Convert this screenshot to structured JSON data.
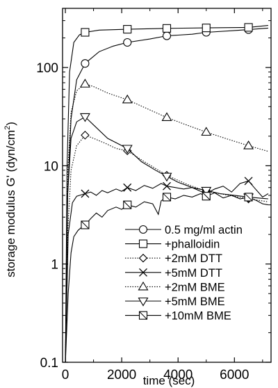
{
  "chart_data": {
    "type": "line",
    "xlabel": "time (sec)",
    "ylabel_main": "storage modulus G' (dyn/cm",
    "ylabel_sup": "2",
    "ylabel_end": ")",
    "x_range": [
      -100,
      7300
    ],
    "y_range": [
      0.1,
      400
    ],
    "y_scale": "log",
    "x_ticks": [
      0,
      2000,
      4000,
      6000
    ],
    "x_tick_labels": [
      "0",
      "2000",
      "4000",
      "6000"
    ],
    "y_ticks": [
      0.1,
      1,
      10,
      100
    ],
    "y_tick_labels": [
      "0.1",
      "1",
      "10",
      "100"
    ],
    "legend_position": "bottom-right",
    "series": [
      {
        "name": "0.5 mg/ml actin",
        "marker": "circle",
        "dash": "",
        "points": [
          [
            0,
            0.1
          ],
          [
            80,
            5
          ],
          [
            200,
            30
          ],
          [
            400,
            75
          ],
          [
            700,
            110
          ],
          [
            1200,
            145
          ],
          [
            1700,
            165
          ],
          [
            2200,
            180
          ],
          [
            3000,
            195
          ],
          [
            3600,
            210
          ],
          [
            4500,
            218
          ],
          [
            5000,
            228
          ],
          [
            6000,
            238
          ],
          [
            6500,
            243
          ],
          [
            7200,
            252
          ]
        ],
        "markers": [
          [
            700,
            110
          ],
          [
            2200,
            180
          ],
          [
            3600,
            210
          ],
          [
            5000,
            228
          ],
          [
            6500,
            243
          ]
        ]
      },
      {
        "name": "+phalloidin",
        "marker": "square",
        "dash": "",
        "points": [
          [
            0,
            0.1
          ],
          [
            60,
            10
          ],
          [
            150,
            90
          ],
          [
            300,
            180
          ],
          [
            500,
            215
          ],
          [
            700,
            228
          ],
          [
            1200,
            240
          ],
          [
            2200,
            245
          ],
          [
            3600,
            250
          ],
          [
            5000,
            253
          ],
          [
            6500,
            256
          ],
          [
            7200,
            268
          ]
        ],
        "markers": [
          [
            700,
            228
          ],
          [
            2200,
            245
          ],
          [
            3600,
            250
          ],
          [
            5000,
            253
          ],
          [
            6500,
            256
          ]
        ]
      },
      {
        "name": "+2mM DTT",
        "marker": "diamond",
        "dash": "1.5,2",
        "points": [
          [
            0,
            0.1
          ],
          [
            80,
            2
          ],
          [
            200,
            9
          ],
          [
            400,
            16
          ],
          [
            700,
            20.5
          ],
          [
            1000,
            19
          ],
          [
            1400,
            17
          ],
          [
            1800,
            15
          ],
          [
            2200,
            14.2
          ],
          [
            2800,
            11
          ],
          [
            3600,
            8
          ],
          [
            4300,
            6.5
          ],
          [
            5000,
            5.5
          ],
          [
            5800,
            5
          ],
          [
            6500,
            4.6
          ],
          [
            7200,
            4.3
          ]
        ],
        "markers": [
          [
            700,
            20.5
          ],
          [
            2200,
            14.2
          ],
          [
            3600,
            8
          ],
          [
            5000,
            5.5
          ],
          [
            6500,
            4.6
          ]
        ]
      },
      {
        "name": "+5mM DTT",
        "marker": "x",
        "dash": "",
        "points": [
          [
            0,
            0.1
          ],
          [
            100,
            2
          ],
          [
            250,
            4.2
          ],
          [
            400,
            4.9
          ],
          [
            700,
            5.2
          ],
          [
            900,
            5.4
          ],
          [
            1100,
            5.0
          ],
          [
            1300,
            5.6
          ],
          [
            1500,
            5.3
          ],
          [
            1800,
            5.8
          ],
          [
            2000,
            5.5
          ],
          [
            2200,
            6.0
          ],
          [
            2500,
            5.6
          ],
          [
            2800,
            6.3
          ],
          [
            3100,
            5.9
          ],
          [
            3400,
            6.6
          ],
          [
            3600,
            6.2
          ],
          [
            3900,
            6.0
          ],
          [
            4200,
            5.8
          ],
          [
            4500,
            6.0
          ],
          [
            4800,
            5.5
          ],
          [
            5000,
            5.2
          ],
          [
            5300,
            5.8
          ],
          [
            5600,
            6.2
          ],
          [
            5900,
            5.4
          ],
          [
            6200,
            6.6
          ],
          [
            6500,
            7.0
          ],
          [
            6700,
            6.0
          ],
          [
            7000,
            4.8
          ],
          [
            7200,
            5.2
          ]
        ],
        "markers": [
          [
            700,
            5.2
          ],
          [
            2200,
            6.0
          ],
          [
            3600,
            6.2
          ],
          [
            5000,
            5.2
          ],
          [
            6500,
            7.0
          ]
        ]
      },
      {
        "name": "+2mM BME",
        "marker": "triangle",
        "dash": "1.5,2",
        "points": [
          [
            0,
            0.1
          ],
          [
            80,
            8
          ],
          [
            200,
            35
          ],
          [
            400,
            58
          ],
          [
            700,
            68
          ],
          [
            1000,
            64
          ],
          [
            1500,
            55
          ],
          [
            2200,
            47
          ],
          [
            3000,
            37
          ],
          [
            3600,
            31
          ],
          [
            4300,
            26
          ],
          [
            5000,
            22
          ],
          [
            5800,
            18.5
          ],
          [
            6500,
            16
          ],
          [
            7200,
            14
          ]
        ],
        "markers": [
          [
            700,
            68
          ],
          [
            2200,
            47
          ],
          [
            3600,
            31
          ],
          [
            5000,
            22
          ],
          [
            6500,
            16
          ]
        ]
      },
      {
        "name": "+5mM BME",
        "marker": "triangle-down",
        "dash": "",
        "points": [
          [
            0,
            0.1
          ],
          [
            80,
            5
          ],
          [
            200,
            19
          ],
          [
            400,
            28
          ],
          [
            700,
            31.5
          ],
          [
            1000,
            26
          ],
          [
            1500,
            19
          ],
          [
            2200,
            15
          ],
          [
            2700,
            11
          ],
          [
            3200,
            9
          ],
          [
            3600,
            7.8
          ],
          [
            4000,
            6.8
          ],
          [
            4500,
            6.0
          ],
          [
            5000,
            5.6
          ],
          [
            5500,
            5.2
          ],
          [
            6000,
            5.0
          ],
          [
            6500,
            4.8
          ],
          [
            7200,
            4.6
          ]
        ],
        "markers": [
          [
            700,
            31.5
          ],
          [
            2200,
            15
          ],
          [
            3600,
            7.8
          ],
          [
            5000,
            5.6
          ],
          [
            6500,
            4.8
          ]
        ]
      },
      {
        "name": "+10mM BME",
        "marker": "square-x",
        "dash": "",
        "points": [
          [
            0,
            0.1
          ],
          [
            100,
            0.5
          ],
          [
            200,
            1.3
          ],
          [
            300,
            1.9
          ],
          [
            450,
            2.2
          ],
          [
            600,
            2.4
          ],
          [
            700,
            2.5
          ],
          [
            900,
            2.9
          ],
          [
            1100,
            3.3
          ],
          [
            1300,
            3.0
          ],
          [
            1500,
            3.5
          ],
          [
            1800,
            3.8
          ],
          [
            2000,
            3.6
          ],
          [
            2200,
            4.0
          ],
          [
            2500,
            3.8
          ],
          [
            2800,
            4.3
          ],
          [
            3100,
            4.1
          ],
          [
            3300,
            3.2
          ],
          [
            3400,
            4.4
          ],
          [
            3600,
            4.8
          ],
          [
            3900,
            4.6
          ],
          [
            4200,
            5.0
          ],
          [
            4500,
            4.8
          ],
          [
            4800,
            5.2
          ],
          [
            5000,
            4.9
          ],
          [
            5300,
            5.3
          ],
          [
            5600,
            4.7
          ],
          [
            5900,
            5.0
          ],
          [
            6200,
            4.6
          ],
          [
            6500,
            4.8
          ],
          [
            6800,
            4.4
          ],
          [
            7000,
            4.1
          ],
          [
            7200,
            4.0
          ]
        ],
        "markers": [
          [
            700,
            2.5
          ],
          [
            2200,
            4.0
          ],
          [
            3600,
            4.8
          ],
          [
            5000,
            4.9
          ],
          [
            6500,
            4.8
          ]
        ]
      }
    ]
  }
}
